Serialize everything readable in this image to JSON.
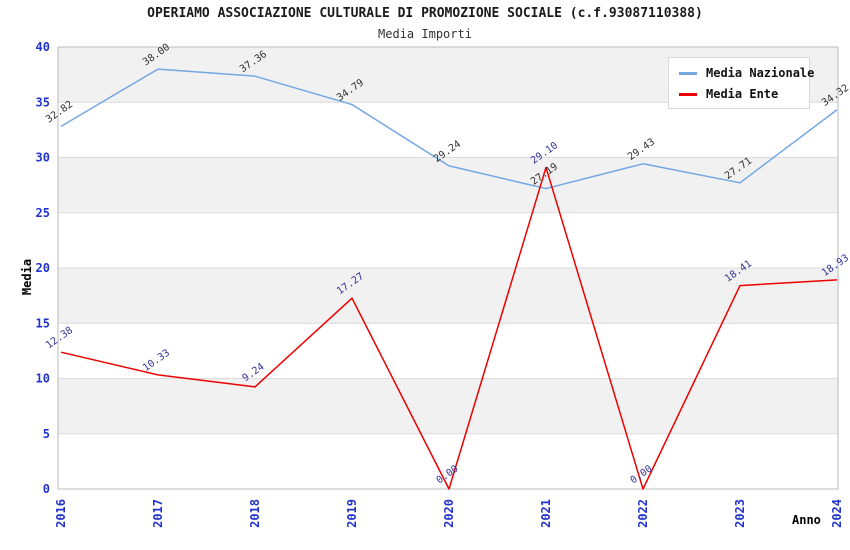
{
  "chart_data": {
    "type": "line",
    "title": "OPERIAMO ASSOCIAZIONE CULTURALE DI PROMOZIONE SOCIALE (c.f.93087110388)",
    "subtitle": "Media Importi",
    "xlabel": "Anno",
    "ylabel": "Media",
    "categories": [
      "2016",
      "2017",
      "2018",
      "2019",
      "2020",
      "2021",
      "2022",
      "2023",
      "2024"
    ],
    "ylim": [
      0,
      40
    ],
    "ytick_step": 5,
    "yticks": [
      0,
      5,
      10,
      15,
      20,
      25,
      30,
      35,
      40
    ],
    "grid": "alternating-horizontal-bands",
    "legend": {
      "position": "top-right",
      "entries": [
        "Media Nazionale",
        "Media Ente"
      ]
    },
    "series": [
      {
        "name": "Media Nazionale",
        "color": "#74A7E2",
        "label_color": "#303030",
        "values": [
          32.82,
          38.0,
          37.36,
          34.79,
          29.24,
          27.19,
          29.43,
          27.71,
          34.32
        ]
      },
      {
        "name": "Media Ente",
        "color": "#EE0000",
        "label_color": "#333399",
        "values": [
          12.38,
          10.33,
          9.24,
          17.27,
          0.0,
          29.1,
          0.0,
          18.41,
          18.93
        ]
      }
    ],
    "colors": {
      "tick_label": "#2233CC",
      "band_gray": "#F1F1F1",
      "band_white": "#FFFFFF",
      "plot_border": "#BBBBBB",
      "gridline": "#DCDCDC",
      "title": "#1A1A1A",
      "axis_title": "#000000",
      "data_label_nazionale": "#303030",
      "data_label_ente": "#333399"
    }
  }
}
